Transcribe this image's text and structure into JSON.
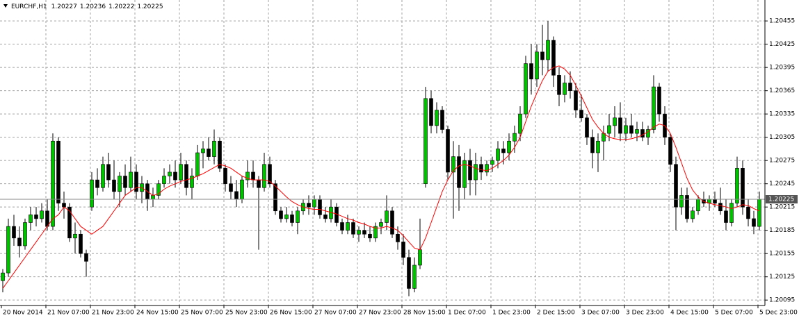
{
  "chart_data": {
    "type": "candlestick",
    "symbol": "EURCHF,H1",
    "header_values": [
      1.20227,
      1.20236,
      1.20222,
      1.20225
    ],
    "last": 1.20225,
    "up_color": "#00c000",
    "down_color": "#000000",
    "ma_color": "#ff0000",
    "ylim": [
      1.20088,
      1.20482
    ],
    "yticks": [
      1.20095,
      1.20125,
      1.20155,
      1.20185,
      1.20215,
      1.20245,
      1.20275,
      1.20305,
      1.20335,
      1.20365,
      1.20395,
      1.20425,
      1.20455
    ],
    "grid": true,
    "categories": [
      "20 Nov 2014",
      "21 Nov 07:00",
      "21 Nov 23:00",
      "24 Nov 15:00",
      "25 Nov 07:00",
      "25 Nov 23:00",
      "26 Nov 15:00",
      "27 Nov 07:00",
      "27 Nov 23:00",
      "28 Nov 15:00",
      "1 Dec 07:00",
      "1 Dec 23:00",
      "2 Dec 15:00",
      "3 Dec 07:00",
      "3 Dec 23:00",
      "4 Dec 15:00",
      "5 Dec 07:00",
      "5 Dec 23:00"
    ],
    "open": [
      1.2012,
      1.2013,
      1.2019,
      1.20175,
      1.20165,
      1.20195,
      1.20205,
      1.202,
      1.2021,
      1.2019,
      1.203,
      1.2022,
      1.20215,
      1.20175,
      1.2018,
      1.20155,
      1.20215,
      1.2025,
      1.2024,
      1.2027,
      1.2025,
      1.20235,
      1.20255,
      1.2024,
      1.2026,
      1.20235,
      1.20245,
      1.20225,
      1.2023,
      1.20245,
      1.20255,
      1.2026,
      1.2025,
      1.2027,
      1.2024,
      1.20255,
      1.20285,
      1.2029,
      1.2028,
      1.203,
      1.20265,
      1.20245,
      1.20235,
      1.20225,
      1.2025,
      1.2026,
      1.2025,
      1.2024,
      1.2027,
      1.20245,
      1.2021,
      1.202,
      1.20205,
      1.20195,
      1.2021,
      1.2022,
      1.20215,
      1.20225,
      1.20205,
      1.202,
      1.20215,
      1.20195,
      1.20185,
      1.20195,
      1.2018,
      1.20185,
      1.2018,
      1.20175,
      1.2019,
      1.20195,
      1.2021,
      1.2018,
      1.2017,
      1.2015,
      1.2011,
      1.2014,
      1.20245,
      1.20355,
      1.2032,
      1.2034,
      1.20315,
      1.2026,
      1.2028,
      1.2024,
      1.20275,
      1.2025,
      1.2027,
      1.2026,
      1.2027,
      1.20275,
      1.2029,
      1.20285,
      1.203,
      1.2031,
      1.20335,
      1.204,
      1.2038,
      1.20415,
      1.20405,
      1.2043,
      1.20385,
      1.2036,
      1.20375,
      1.20365,
      1.2034,
      1.2033,
      1.20305,
      1.20285,
      1.203,
      1.2031,
      1.2032,
      1.2033,
      1.2031,
      1.2032,
      1.2031,
      1.20315,
      1.20305,
      1.20315,
      1.2037,
      1.20335,
      1.20305,
      1.2027,
      1.20215,
      1.2023,
      1.202,
      1.2021,
      1.20225,
      1.2022,
      1.20225,
      1.2022,
      1.2021,
      1.20195,
      1.2022,
      1.20265,
      1.20215,
      1.202,
      1.2019
    ],
    "high": [
      1.20135,
      1.202,
      1.20205,
      1.2019,
      1.202,
      1.20215,
      1.20215,
      1.2022,
      1.20225,
      1.2031,
      1.20305,
      1.20235,
      1.2022,
      1.20195,
      1.20185,
      1.2016,
      1.2026,
      1.20265,
      1.2028,
      1.20285,
      1.20275,
      1.2026,
      1.2027,
      1.2028,
      1.2027,
      1.20255,
      1.2025,
      1.2024,
      1.2025,
      1.20265,
      1.2027,
      1.20275,
      1.20285,
      1.20275,
      1.20265,
      1.20295,
      1.203,
      1.20305,
      1.20315,
      1.20305,
      1.2027,
      1.20255,
      1.2025,
      1.20255,
      1.20275,
      1.20275,
      1.20255,
      1.20285,
      1.2028,
      1.2025,
      1.20215,
      1.20215,
      1.2021,
      1.20215,
      1.20225,
      1.2023,
      1.2023,
      1.2023,
      1.20215,
      1.20225,
      1.2022,
      1.202,
      1.20205,
      1.202,
      1.2019,
      1.20195,
      1.2019,
      1.20195,
      1.202,
      1.2023,
      1.20215,
      1.2019,
      1.2018,
      1.2016,
      1.2015,
      1.202,
      1.2037,
      1.20365,
      1.2035,
      1.20345,
      1.2032,
      1.203,
      1.20295,
      1.20285,
      1.2029,
      1.20285,
      1.2028,
      1.20275,
      1.2028,
      1.203,
      1.203,
      1.2031,
      1.2032,
      1.20345,
      1.2041,
      1.20425,
      1.20425,
      1.2045,
      1.20455,
      1.20435,
      1.20395,
      1.20385,
      1.2039,
      1.20375,
      1.2036,
      1.20335,
      1.20315,
      1.2031,
      1.2032,
      1.20335,
      1.20345,
      1.2035,
      1.2033,
      1.20335,
      1.20325,
      1.20325,
      1.2032,
      1.20385,
      1.20375,
      1.20345,
      1.2031,
      1.2028,
      1.2024,
      1.2024,
      1.20215,
      1.2023,
      1.20235,
      1.2023,
      1.20235,
      1.2024,
      1.20225,
      1.20225,
      1.2028,
      1.20275,
      1.20225,
      1.2021,
      1.20235
    ],
    "low": [
      1.20105,
      1.20125,
      1.20165,
      1.2015,
      1.2016,
      1.20185,
      1.2019,
      1.20195,
      1.20185,
      1.20185,
      1.2021,
      1.202,
      1.2017,
      1.20155,
      1.2015,
      1.20125,
      1.2021,
      1.2023,
      1.20235,
      1.2024,
      1.20225,
      1.20215,
      1.2023,
      1.20235,
      1.20225,
      1.2022,
      1.2021,
      1.20215,
      1.20225,
      1.2024,
      1.20245,
      1.2024,
      1.20245,
      1.2023,
      1.20225,
      1.2025,
      1.20265,
      1.20275,
      1.2027,
      1.2026,
      1.20235,
      1.20225,
      1.20215,
      1.2022,
      1.2024,
      1.2024,
      1.2016,
      1.20235,
      1.2024,
      1.20205,
      1.20195,
      1.20195,
      1.2019,
      1.2018,
      1.20205,
      1.20205,
      1.20205,
      1.202,
      1.20195,
      1.20195,
      1.2019,
      1.2018,
      1.2018,
      1.20175,
      1.2017,
      1.20175,
      1.2017,
      1.2017,
      1.2018,
      1.20185,
      1.20175,
      1.2016,
      1.2014,
      1.201,
      1.20105,
      1.20135,
      1.2024,
      1.2031,
      1.2031,
      1.2031,
      1.2025,
      1.202,
      1.2021,
      1.20225,
      1.2023,
      1.2023,
      1.2025,
      1.20255,
      1.2026,
      1.20265,
      1.2027,
      1.20275,
      1.20285,
      1.203,
      1.2033,
      1.2036,
      1.2037,
      1.20385,
      1.2039,
      1.2037,
      1.20345,
      1.2035,
      1.20355,
      1.2033,
      1.20325,
      1.20295,
      1.20265,
      1.2026,
      1.20275,
      1.203,
      1.20305,
      1.203,
      1.203,
      1.20305,
      1.203,
      1.203,
      1.20295,
      1.2031,
      1.20325,
      1.20295,
      1.2026,
      1.20185,
      1.20205,
      1.20195,
      1.20195,
      1.20205,
      1.20215,
      1.2021,
      1.20215,
      1.20205,
      1.20185,
      1.2019,
      1.20215,
      1.20205,
      1.2019,
      1.2018,
      1.20185
    ],
    "close": [
      1.2013,
      1.2019,
      1.20175,
      1.20165,
      1.20195,
      1.20205,
      1.202,
      1.2021,
      1.2019,
      1.203,
      1.2022,
      1.20215,
      1.20175,
      1.2018,
      1.20155,
      1.20145,
      1.2025,
      1.2024,
      1.2027,
      1.2025,
      1.20235,
      1.20255,
      1.2024,
      1.2026,
      1.20235,
      1.20245,
      1.20225,
      1.2023,
      1.20245,
      1.20255,
      1.2026,
      1.2025,
      1.2027,
      1.2024,
      1.20255,
      1.20285,
      1.2029,
      1.2028,
      1.203,
      1.20265,
      1.20245,
      1.20235,
      1.20225,
      1.2025,
      1.2026,
      1.2025,
      1.2024,
      1.2027,
      1.20245,
      1.2021,
      1.202,
      1.20205,
      1.20195,
      1.2021,
      1.2022,
      1.20215,
      1.20225,
      1.20205,
      1.202,
      1.20215,
      1.20195,
      1.20185,
      1.20195,
      1.2018,
      1.20185,
      1.2018,
      1.20175,
      1.2019,
      1.20195,
      1.2021,
      1.2018,
      1.2017,
      1.2015,
      1.2011,
      1.2014,
      1.2016,
      1.20355,
      1.2032,
      1.2034,
      1.20315,
      1.2026,
      1.2028,
      1.2024,
      1.20275,
      1.2025,
      1.2027,
      1.2026,
      1.2027,
      1.20275,
      1.2029,
      1.20285,
      1.203,
      1.2031,
      1.20335,
      1.204,
      1.2038,
      1.20415,
      1.20405,
      1.2043,
      1.20385,
      1.2036,
      1.20375,
      1.20365,
      1.2034,
      1.2033,
      1.20305,
      1.20285,
      1.203,
      1.2031,
      1.2032,
      1.2033,
      1.2031,
      1.2032,
      1.2031,
      1.20315,
      1.20305,
      1.20315,
      1.2037,
      1.20335,
      1.20305,
      1.2027,
      1.20215,
      1.2023,
      1.202,
      1.2021,
      1.20225,
      1.2022,
      1.20225,
      1.2022,
      1.2021,
      1.20195,
      1.2022,
      1.20265,
      1.20215,
      1.202,
      1.2019,
      1.20225
    ],
    "ma": [
      1.2011,
      1.2012,
      1.2013,
      1.2014,
      1.2015,
      1.2016,
      1.2017,
      1.2018,
      1.2019,
      1.202,
      1.20205,
      1.20215,
      1.2021,
      1.202,
      1.2019,
      1.20185,
      1.2018,
      1.20185,
      1.2019,
      1.202,
      1.2021,
      1.2022,
      1.2023,
      1.20235,
      1.2024,
      1.2024,
      1.20235,
      1.2023,
      1.20232,
      1.20238,
      1.20242,
      1.20245,
      1.20248,
      1.2025,
      1.20252,
      1.20255,
      1.20258,
      1.20262,
      1.20266,
      1.2027,
      1.20268,
      1.20265,
      1.2026,
      1.20255,
      1.20252,
      1.2025,
      1.2025,
      1.2025,
      1.20248,
      1.20242,
      1.20235,
      1.20228,
      1.20222,
      1.20218,
      1.20215,
      1.20213,
      1.20212,
      1.20212,
      1.2021,
      1.20208,
      1.20206,
      1.20203,
      1.202,
      1.20198,
      1.20195,
      1.20193,
      1.2019,
      1.20188,
      1.20188,
      1.2019,
      1.20188,
      1.20185,
      1.20178,
      1.2017,
      1.20162,
      1.2016,
      1.20175,
      1.20195,
      1.20215,
      1.20235,
      1.2025,
      1.20262,
      1.20268,
      1.2027,
      1.20268,
      1.20265,
      1.20263,
      1.20262,
      1.20265,
      1.2027,
      1.20275,
      1.20282,
      1.20292,
      1.20305,
      1.20325,
      1.20345,
      1.20362,
      1.20378,
      1.2039,
      1.20395,
      1.20397,
      1.20393,
      1.20385,
      1.20372,
      1.20358,
      1.20343,
      1.20328,
      1.20318,
      1.2031,
      1.20305,
      1.20303,
      1.20302,
      1.20302,
      1.20303,
      1.20305,
      1.20308,
      1.20312,
      1.20318,
      1.20322,
      1.2032,
      1.2031,
      1.20292,
      1.20272,
      1.20252,
      1.20237,
      1.20228,
      1.20222,
      1.2022,
      1.20218,
      1.20217,
      1.20215,
      1.20213,
      1.20215,
      1.20218,
      1.20217,
      1.20213,
      1.2021
    ]
  }
}
